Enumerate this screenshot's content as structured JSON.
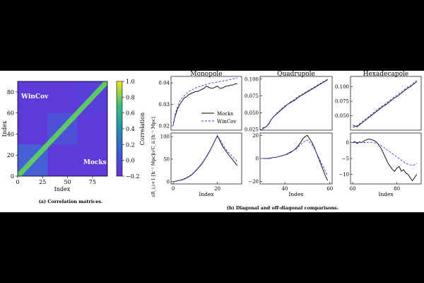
{
  "colors": {
    "mocks": "#000000",
    "wincov": "#3b35e6",
    "frame": "#000000"
  },
  "heatmap": {
    "chart_data": {
      "type": "heatmap",
      "xlabel": "Index",
      "ylabel": "Index",
      "x_ticks": [
        "0",
        "25",
        "50",
        "75"
      ],
      "y_ticks": [
        "0",
        "20",
        "40",
        "60",
        "80"
      ],
      "xlim": [
        0,
        90
      ],
      "ylim": [
        0,
        90
      ],
      "upper_label": "WinCov",
      "lower_label": "Mocks",
      "colorbar_label": "Correlation",
      "colorbar_ticks": [
        "1.0",
        "0.8",
        "0.6",
        "0.4",
        "0.2",
        "0.0",
        "−0.2"
      ],
      "colorbar_range": [
        -0.2,
        1.0
      ],
      "block_size": 30
    },
    "caption": "(a) Correlation matrices."
  },
  "panels": {
    "titles": [
      "Monopole",
      "Quadrupole",
      "Hexadecapole"
    ],
    "xlabel": "Index",
    "ylabel_top": "s√C_ii [h⁻¹ Mpc]",
    "ylabel_bottom": "sR_i,i+1 [h⁻¹ Mpc]",
    "legend": {
      "mocks": "Mocks",
      "wincov": "WinCov"
    },
    "caption": "(b) Diagonal and off-diagonal comparisons.",
    "x_ticks": [
      [
        "0",
        "20"
      ],
      [
        "40",
        "60"
      ],
      [
        "60",
        "80"
      ]
    ],
    "chart_data": [
      {
        "type": "line",
        "title": "Monopole",
        "row": "diagonal",
        "x": [
          0,
          1,
          2,
          3,
          4,
          5,
          6,
          7,
          8,
          9,
          10,
          11,
          12,
          13,
          14,
          15,
          16,
          17,
          18,
          19,
          20,
          21,
          22,
          23,
          24,
          25,
          26,
          27,
          28,
          29
        ],
        "ylim": [
          0.018,
          0.043
        ],
        "y_ticks": [
          "0.02",
          "0.03",
          "0.04"
        ],
        "series": [
          {
            "name": "Mocks",
            "values": [
              0.021,
              0.025,
              0.028,
              0.03,
              0.0315,
              0.033,
              0.0335,
              0.0345,
              0.035,
              0.0355,
              0.036,
              0.036,
              0.0365,
              0.037,
              0.0375,
              0.0385,
              0.038,
              0.0375,
              0.0375,
              0.038,
              0.0385,
              0.0375,
              0.0375,
              0.038,
              0.0385,
              0.0385,
              0.039,
              0.039,
              0.0395,
              0.0395
            ]
          },
          {
            "name": "WinCov",
            "values": [
              0.02,
              0.026,
              0.029,
              0.0315,
              0.033,
              0.034,
              0.035,
              0.036,
              0.0365,
              0.037,
              0.0375,
              0.038,
              0.0383,
              0.0387,
              0.039,
              0.0393,
              0.0396,
              0.0398,
              0.04,
              0.0402,
              0.0404,
              0.0406,
              0.0408,
              0.041,
              0.0412,
              0.0414,
              0.0416,
              0.0418,
              0.042,
              0.0422
            ]
          }
        ]
      },
      {
        "type": "line",
        "title": "Quadrupole",
        "row": "diagonal",
        "x": [
          30,
          31,
          32,
          33,
          34,
          35,
          36,
          37,
          38,
          39,
          40,
          41,
          42,
          43,
          44,
          45,
          46,
          47,
          48,
          49,
          50,
          51,
          52,
          53,
          54,
          55,
          56,
          57,
          58,
          59
        ],
        "ylim": [
          0.024,
          0.104
        ],
        "y_ticks": [
          "0.025",
          "0.050",
          "0.075",
          "0.100"
        ],
        "series": [
          {
            "name": "Mocks",
            "values": [
              0.027,
              0.028,
              0.03,
              0.034,
              0.04,
              0.044,
              0.047,
              0.05,
              0.053,
              0.056,
              0.059,
              0.062,
              0.064,
              0.066,
              0.068,
              0.07,
              0.073,
              0.075,
              0.077,
              0.079,
              0.081,
              0.083,
              0.085,
              0.087,
              0.089,
              0.091,
              0.093,
              0.095,
              0.097,
              0.099
            ]
          },
          {
            "name": "WinCov",
            "values": [
              0.025,
              0.027,
              0.03,
              0.035,
              0.04,
              0.044,
              0.048,
              0.051,
              0.054,
              0.057,
              0.06,
              0.062,
              0.065,
              0.067,
              0.069,
              0.072,
              0.074,
              0.076,
              0.078,
              0.08,
              0.082,
              0.084,
              0.086,
              0.088,
              0.09,
              0.092,
              0.094,
              0.096,
              0.098,
              0.1
            ]
          }
        ]
      },
      {
        "type": "line",
        "title": "Hexadecapole",
        "row": "diagonal",
        "x": [
          60,
          61,
          62,
          63,
          64,
          65,
          66,
          67,
          68,
          69,
          70,
          71,
          72,
          73,
          74,
          75,
          76,
          77,
          78,
          79,
          80,
          81,
          82,
          83,
          84,
          85,
          86,
          87,
          88,
          89
        ],
        "ylim": [
          0.025,
          0.118
        ],
        "y_ticks": [
          "0.050",
          "0.075",
          "0.100"
        ],
        "series": [
          {
            "name": "Mocks",
            "values": [
              0.034,
              0.032,
              0.031,
              0.034,
              0.037,
              0.04,
              0.043,
              0.046,
              0.049,
              0.052,
              0.055,
              0.058,
              0.061,
              0.064,
              0.067,
              0.069,
              0.072,
              0.075,
              0.078,
              0.081,
              0.083,
              0.086,
              0.089,
              0.092,
              0.095,
              0.098,
              0.1,
              0.103,
              0.106,
              0.109
            ]
          },
          {
            "name": "WinCov",
            "values": [
              0.03,
              0.031,
              0.033,
              0.036,
              0.039,
              0.042,
              0.045,
              0.048,
              0.051,
              0.054,
              0.057,
              0.06,
              0.063,
              0.066,
              0.068,
              0.071,
              0.074,
              0.077,
              0.08,
              0.083,
              0.085,
              0.088,
              0.091,
              0.094,
              0.097,
              0.1,
              0.102,
              0.105,
              0.108,
              0.111
            ]
          }
        ]
      },
      {
        "type": "line",
        "title": "Monopole",
        "row": "off-diagonal",
        "x": [
          0,
          1,
          2,
          3,
          4,
          5,
          6,
          7,
          8,
          9,
          10,
          11,
          12,
          13,
          14,
          15,
          16,
          17,
          18,
          19,
          20,
          21,
          22,
          23,
          24,
          25,
          26,
          27,
          28,
          29
        ],
        "ylim": [
          -5,
          108
        ],
        "y_ticks": [
          "0",
          "50",
          "100"
        ],
        "series": [
          {
            "name": "Mocks",
            "values": [
              0,
              1,
              2,
              3,
              4,
              6,
              8,
              11,
              14,
              18,
              23,
              28,
              34,
              40,
              47,
              55,
              63,
              72,
              82,
              92,
              102,
              92,
              82,
              74,
              67,
              60,
              54,
              48,
              42,
              36
            ]
          },
          {
            "name": "WinCov",
            "values": [
              0,
              1,
              2,
              3,
              5,
              7,
              9,
              12,
              15,
              19,
              24,
              29,
              35,
              41,
              48,
              56,
              64,
              73,
              83,
              93,
              100,
              95,
              86,
              78,
              71,
              65,
              60,
              55,
              50,
              45
            ]
          }
        ]
      },
      {
        "type": "line",
        "title": "Quadrupole",
        "row": "off-diagonal",
        "x": [
          30,
          31,
          32,
          33,
          34,
          35,
          36,
          37,
          38,
          39,
          40,
          41,
          42,
          43,
          44,
          45,
          46,
          47,
          48,
          49,
          50,
          51,
          52,
          53,
          54,
          55,
          56,
          57,
          58,
          59
        ],
        "ylim": [
          -22,
          22
        ],
        "y_ticks": [
          "−20",
          "0",
          "20"
        ],
        "series": [
          {
            "name": "Mocks",
            "values": [
              0,
              0,
              0,
              0,
              0.5,
              1,
              1,
              1.5,
              2,
              2.5,
              3,
              4,
              5,
              6,
              7,
              9,
              11,
              14,
              17,
              19,
              20,
              17,
              14,
              10,
              5,
              0,
              -5,
              -10,
              -15,
              -19
            ]
          },
          {
            "name": "WinCov",
            "values": [
              0,
              0,
              0,
              0.5,
              0.5,
              1,
              1,
              1.5,
              2,
              2.5,
              3,
              3.5,
              4.5,
              5.5,
              7,
              8,
              10,
              12,
              14,
              15,
              16,
              14,
              12,
              9,
              5,
              1,
              -3,
              -7,
              -11,
              -15
            ]
          }
        ]
      },
      {
        "type": "line",
        "title": "Hexadecapole",
        "row": "off-diagonal",
        "x": [
          60,
          61,
          62,
          63,
          64,
          65,
          66,
          67,
          68,
          69,
          70,
          71,
          72,
          73,
          74,
          75,
          76,
          77,
          78,
          79,
          80,
          81,
          82,
          83,
          84,
          85,
          86,
          87,
          88,
          89
        ],
        "ylim": [
          -13,
          3
        ],
        "y_ticks": [
          "0",
          "−5",
          "−10"
        ],
        "series": [
          {
            "name": "Mocks",
            "values": [
              0,
              0.3,
              -0.3,
              0.2,
              0,
              0.5,
              0.8,
              1.1,
              1,
              0.8,
              0.5,
              0,
              -1,
              -2,
              -3.5,
              -5,
              -6.5,
              -7.5,
              -8.5,
              -9,
              -8,
              -7.5,
              -9,
              -8.5,
              -9.5,
              -10,
              -11,
              -12,
              -11,
              -10
            ]
          },
          {
            "name": "WinCov",
            "values": [
              0,
              0,
              0,
              0,
              0,
              0,
              0,
              0.1,
              0.1,
              0,
              -0.1,
              -0.3,
              -0.6,
              -1,
              -1.5,
              -2,
              -2.5,
              -3,
              -3.5,
              -4,
              -4.5,
              -5,
              -5.5,
              -6,
              -6.5,
              -6.8,
              -7,
              -7.2,
              -7,
              -6.5
            ]
          }
        ]
      }
    ]
  }
}
